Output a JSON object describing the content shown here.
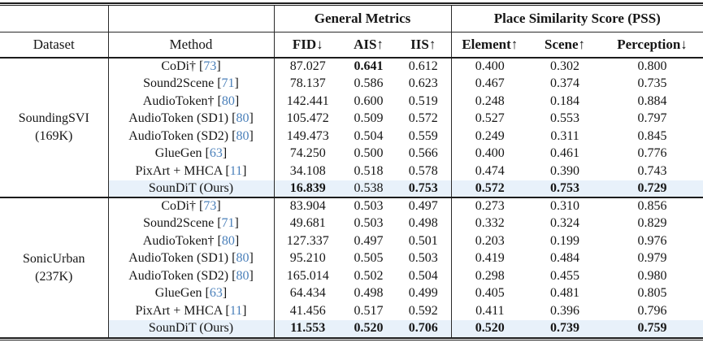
{
  "table": {
    "group_headers": [
      {
        "label": "General Metrics"
      },
      {
        "label": "Place Similarity Score (PSS)"
      }
    ],
    "column_headers": [
      "Dataset",
      "Method",
      "FID↓",
      "AIS↑",
      "IIS↑",
      "Element↑",
      "Scene↑",
      "Perception↓"
    ],
    "highlight_color": "#e8f1fa",
    "citation_color": "#4b80ba",
    "blocks": [
      {
        "dataset_lines": [
          "SoundingSVI",
          "(169K)"
        ],
        "rows": [
          {
            "method": "CoDi†",
            "cite": "73",
            "values": [
              "87.027",
              "0.641",
              "0.612",
              "0.400",
              "0.302",
              "0.800"
            ],
            "bold": [
              false,
              true,
              false,
              false,
              false,
              false
            ],
            "highlight": false
          },
          {
            "method": "Sound2Scene",
            "cite": "71",
            "values": [
              "78.137",
              "0.586",
              "0.623",
              "0.467",
              "0.374",
              "0.735"
            ],
            "bold": [
              false,
              false,
              false,
              false,
              false,
              false
            ],
            "highlight": false
          },
          {
            "method": "AudioToken†",
            "cite": "80",
            "values": [
              "142.441",
              "0.600",
              "0.519",
              "0.248",
              "0.184",
              "0.884"
            ],
            "bold": [
              false,
              false,
              false,
              false,
              false,
              false
            ],
            "highlight": false
          },
          {
            "method": "AudioToken (SD1)",
            "cite": "80",
            "values": [
              "105.472",
              "0.509",
              "0.572",
              "0.527",
              "0.553",
              "0.797"
            ],
            "bold": [
              false,
              false,
              false,
              false,
              false,
              false
            ],
            "highlight": false
          },
          {
            "method": "AudioToken (SD2)",
            "cite": "80",
            "values": [
              "149.473",
              "0.504",
              "0.559",
              "0.249",
              "0.311",
              "0.845"
            ],
            "bold": [
              false,
              false,
              false,
              false,
              false,
              false
            ],
            "highlight": false
          },
          {
            "method": "GlueGen",
            "cite": "63",
            "values": [
              "74.250",
              "0.500",
              "0.566",
              "0.400",
              "0.461",
              "0.776"
            ],
            "bold": [
              false,
              false,
              false,
              false,
              false,
              false
            ],
            "highlight": false
          },
          {
            "method": "PixArt + MHCA",
            "cite": "11",
            "values": [
              "34.108",
              "0.518",
              "0.578",
              "0.474",
              "0.390",
              "0.743"
            ],
            "bold": [
              false,
              false,
              false,
              false,
              false,
              false
            ],
            "highlight": false
          },
          {
            "method": "SounDiT (Ours)",
            "cite": "",
            "values": [
              "16.839",
              "0.538",
              "0.753",
              "0.572",
              "0.753",
              "0.729"
            ],
            "bold": [
              true,
              false,
              true,
              true,
              true,
              true
            ],
            "highlight": true
          }
        ]
      },
      {
        "dataset_lines": [
          "SonicUrban",
          "(237K)"
        ],
        "rows": [
          {
            "method": "CoDi†",
            "cite": "73",
            "values": [
              "83.904",
              "0.503",
              "0.497",
              "0.273",
              "0.310",
              "0.856"
            ],
            "bold": [
              false,
              false,
              false,
              false,
              false,
              false
            ],
            "highlight": false
          },
          {
            "method": "Sound2Scene",
            "cite": "71",
            "values": [
              "49.681",
              "0.503",
              "0.498",
              "0.332",
              "0.324",
              "0.829"
            ],
            "bold": [
              false,
              false,
              false,
              false,
              false,
              false
            ],
            "highlight": false
          },
          {
            "method": "AudioToken†",
            "cite": "80",
            "values": [
              "127.337",
              "0.497",
              "0.501",
              "0.203",
              "0.199",
              "0.976"
            ],
            "bold": [
              false,
              false,
              false,
              false,
              false,
              false
            ],
            "highlight": false
          },
          {
            "method": "AudioToken (SD1)",
            "cite": "80",
            "values": [
              "95.210",
              "0.505",
              "0.503",
              "0.419",
              "0.484",
              "0.979"
            ],
            "bold": [
              false,
              false,
              false,
              false,
              false,
              false
            ],
            "highlight": false
          },
          {
            "method": "AudioToken (SD2)",
            "cite": "80",
            "values": [
              "165.014",
              "0.502",
              "0.504",
              "0.298",
              "0.455",
              "0.980"
            ],
            "bold": [
              false,
              false,
              false,
              false,
              false,
              false
            ],
            "highlight": false
          },
          {
            "method": "GlueGen",
            "cite": "63",
            "values": [
              "64.434",
              "0.498",
              "0.499",
              "0.405",
              "0.481",
              "0.805"
            ],
            "bold": [
              false,
              false,
              false,
              false,
              false,
              false
            ],
            "highlight": false
          },
          {
            "method": "PixArt + MHCA",
            "cite": "11",
            "values": [
              "41.456",
              "0.517",
              "0.592",
              "0.411",
              "0.396",
              "0.796"
            ],
            "bold": [
              false,
              false,
              false,
              false,
              false,
              false
            ],
            "highlight": false
          },
          {
            "method": "SounDiT (Ours)",
            "cite": "",
            "values": [
              "11.553",
              "0.520",
              "0.706",
              "0.520",
              "0.739",
              "0.759"
            ],
            "bold": [
              true,
              true,
              true,
              true,
              true,
              true
            ],
            "highlight": true
          }
        ]
      }
    ]
  }
}
